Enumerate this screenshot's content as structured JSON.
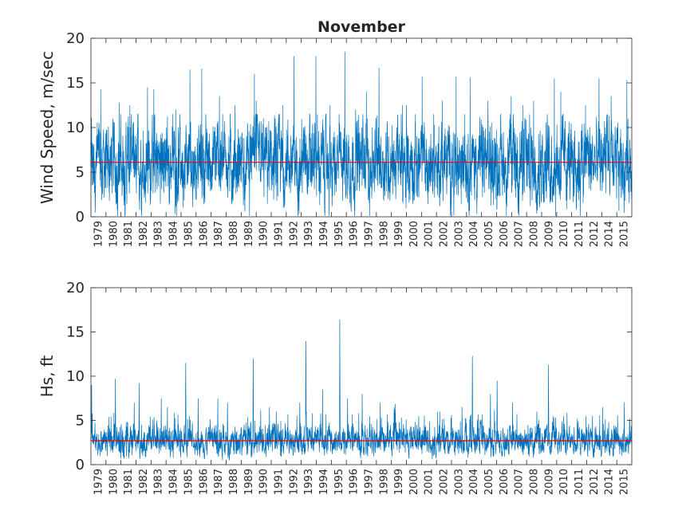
{
  "chart_data": [
    {
      "type": "line",
      "title": "November",
      "xlabel": "",
      "ylabel": "Wind Speed, m/sec",
      "ylim": [
        0,
        20
      ],
      "yticks": [
        0,
        5,
        10,
        15,
        20
      ],
      "x_tick_labels": [
        "1979",
        "1980",
        "1981",
        "1982",
        "1983",
        "1984",
        "1985",
        "1986",
        "1987",
        "1988",
        "1989",
        "1990",
        "1991",
        "1992",
        "1993",
        "1994",
        "1995",
        "1996",
        "1997",
        "1998",
        "1999",
        "2000",
        "2001",
        "2002",
        "2003",
        "2004",
        "2005",
        "2006",
        "2007",
        "2008",
        "2009",
        "2010",
        "2011",
        "2012",
        "2014",
        "2015"
      ],
      "series": [
        {
          "name": "wind_speed",
          "color": "#0072BD",
          "mean_level": 6.1,
          "approx_peak_per_year": [
            14.3,
            12.8,
            12.5,
            14.5,
            14.3,
            12.0,
            16.5,
            16.6,
            13.5,
            12.5,
            16.0,
            13.0,
            12.5,
            18.0,
            18.0,
            12.5,
            18.5,
            12.0,
            14.0,
            16.7,
            12.5,
            12.5,
            15.7,
            13.0,
            15.7,
            15.6,
            13.0,
            13.5,
            12.5,
            13.0,
            15.5,
            14.0,
            12.5,
            15.5,
            13.5,
            15.3
          ]
        },
        {
          "name": "mean",
          "color": "#FF0000",
          "value": 6.1
        }
      ],
      "grid": false
    },
    {
      "type": "line",
      "title": "",
      "xlabel": "",
      "ylabel": "Hs, ft",
      "ylim": [
        0,
        20
      ],
      "yticks": [
        0,
        5,
        10,
        15,
        20
      ],
      "x_tick_labels": [
        "1979",
        "1980",
        "1981",
        "1982",
        "1983",
        "1984",
        "1985",
        "1986",
        "1987",
        "1988",
        "1989",
        "1990",
        "1991",
        "1992",
        "1993",
        "1994",
        "1995",
        "1996",
        "1997",
        "1998",
        "1999",
        "2000",
        "2001",
        "2002",
        "2003",
        "2004",
        "2005",
        "2006",
        "2007",
        "2008",
        "2009",
        "2010",
        "2011",
        "2012",
        "2014",
        "2015"
      ],
      "series": [
        {
          "name": "significant_wave_height",
          "color": "#0072BD",
          "mean_level": 2.7,
          "approx_peak_per_year": [
            9.0,
            9.7,
            7.0,
            9.2,
            7.5,
            6.5,
            11.5,
            7.5,
            7.5,
            7.0,
            12.0,
            6.5,
            6.0,
            7.0,
            14.0,
            8.5,
            16.4,
            7.5,
            8.0,
            7.0,
            6.5,
            5.5,
            5.5,
            6.0,
            6.5,
            12.3,
            8.0,
            9.5,
            7.0,
            6.0,
            11.3,
            5.5,
            5.5,
            5.5,
            6.5,
            7.0
          ]
        },
        {
          "name": "mean",
          "color": "#FF0000",
          "value": 2.7
        }
      ],
      "grid": false
    }
  ]
}
